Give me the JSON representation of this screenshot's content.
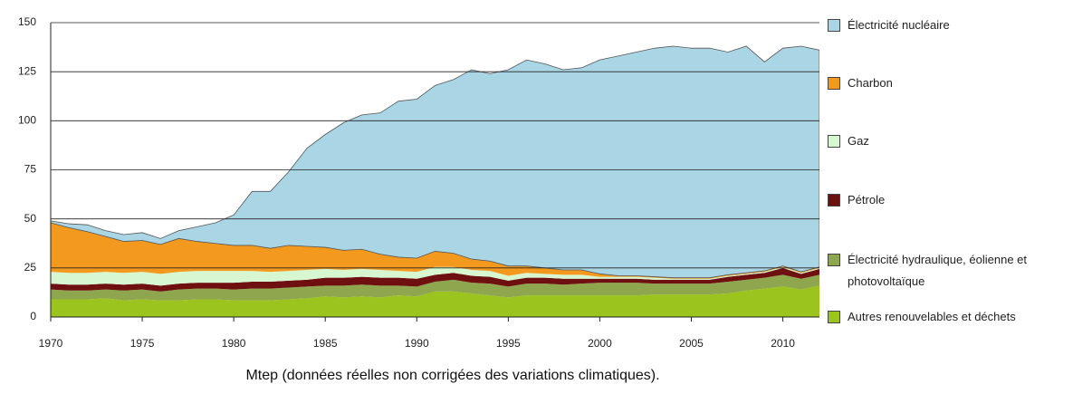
{
  "chart_data": {
    "type": "stacked_area",
    "note": "Mtep (données réelles non corrigées des variations climatiques).",
    "x": [
      1970,
      1971,
      1972,
      1973,
      1974,
      1975,
      1976,
      1977,
      1978,
      1979,
      1980,
      1981,
      1982,
      1983,
      1984,
      1985,
      1986,
      1987,
      1988,
      1989,
      1990,
      1991,
      1992,
      1993,
      1994,
      1995,
      1996,
      1997,
      1998,
      1999,
      2000,
      2001,
      2002,
      2003,
      2004,
      2005,
      2006,
      2007,
      2008,
      2009,
      2010,
      2011,
      2012
    ],
    "xlim": [
      1970,
      2012
    ],
    "xticks": [
      1970,
      1975,
      1980,
      1985,
      1990,
      1995,
      2000,
      2005,
      2010
    ],
    "ylim": [
      0,
      150
    ],
    "yticks": [
      0,
      25,
      50,
      75,
      100,
      125,
      150
    ],
    "grid": true,
    "legend": "right",
    "series": [
      {
        "name": "Autres renouvelables et déchets",
        "color": "#9bc41e",
        "values": [
          9,
          9,
          9,
          9.5,
          8.5,
          9,
          8.5,
          8.5,
          9,
          9,
          8.5,
          8.5,
          8.5,
          9,
          9.5,
          10.5,
          10,
          10.5,
          10,
          11,
          10.5,
          13,
          13,
          12,
          11,
          10,
          11,
          11,
          11,
          11,
          11,
          11,
          11,
          11.5,
          11.5,
          11.5,
          11.5,
          12,
          13.5,
          14.5,
          15.5,
          14,
          16
        ]
      },
      {
        "name": "Électricité hydraulique, éolienne et photovoltaïque",
        "color": "#8ea64e",
        "values": [
          5,
          4.5,
          4.5,
          4.5,
          5,
          5,
          4.5,
          5.5,
          5.5,
          5.5,
          5.5,
          6,
          6,
          6,
          6,
          5.5,
          6,
          6,
          6,
          5,
          5,
          5,
          6,
          5.5,
          6,
          5.5,
          6,
          6,
          5.5,
          6,
          6.5,
          6.5,
          6.5,
          5.5,
          5.5,
          5.5,
          5.5,
          6,
          5.5,
          5.5,
          6,
          5.5,
          5.5
        ]
      },
      {
        "name": "Pétrole",
        "color": "#6e0f10",
        "values": [
          3,
          3,
          3,
          3,
          3,
          3,
          3,
          3,
          3,
          3,
          3.5,
          3.5,
          3.5,
          3.5,
          3.5,
          4,
          4,
          4,
          4,
          4,
          4,
          3.5,
          3.5,
          3.5,
          3.5,
          3,
          3,
          3,
          3,
          2.5,
          2,
          2,
          2,
          2,
          2,
          2,
          2,
          2.5,
          2.5,
          2.5,
          3.5,
          2.5,
          3
        ]
      },
      {
        "name": "Gaz",
        "color": "#d6f7d0",
        "values": [
          6,
          6,
          6,
          6,
          6,
          6,
          6,
          6,
          6,
          6,
          6,
          5.5,
          5,
          5,
          5,
          4.5,
          4,
          4,
          4,
          3.5,
          3.5,
          4,
          3,
          3,
          3,
          2.5,
          2.5,
          2,
          2,
          2,
          1,
          1,
          1,
          1,
          0.5,
          0.5,
          0.5,
          0.5,
          0.5,
          0.5,
          0.5,
          0.5,
          0.5
        ]
      },
      {
        "name": "Charbon",
        "color": "#f39a1e",
        "values": [
          25,
          23,
          21,
          18,
          16,
          16,
          15,
          17,
          15,
          14,
          13,
          13,
          12,
          13,
          12,
          11,
          10,
          10,
          8,
          7,
          7,
          8,
          7,
          5.5,
          5,
          5,
          3.5,
          3,
          2.5,
          2.5,
          1.5,
          0.5,
          0.5,
          0.5,
          0.5,
          0.5,
          0.5,
          0.5,
          0.5,
          0.5,
          0.5,
          0.5,
          0.5
        ]
      },
      {
        "name": "Électricité nucléaire",
        "color": "#aad5e4",
        "values": [
          1,
          2,
          3.5,
          3,
          3.5,
          4,
          3,
          4,
          7.5,
          10.5,
          15.5,
          27.5,
          29,
          37.5,
          50,
          57.5,
          65,
          68.5,
          72,
          79.5,
          81,
          84.5,
          88.5,
          96.5,
          95.5,
          100,
          105,
          104,
          102,
          103,
          109,
          112,
          114,
          116.5,
          118,
          117,
          117,
          113.5,
          115.5,
          106.5,
          111,
          115,
          110.5
        ]
      }
    ]
  }
}
